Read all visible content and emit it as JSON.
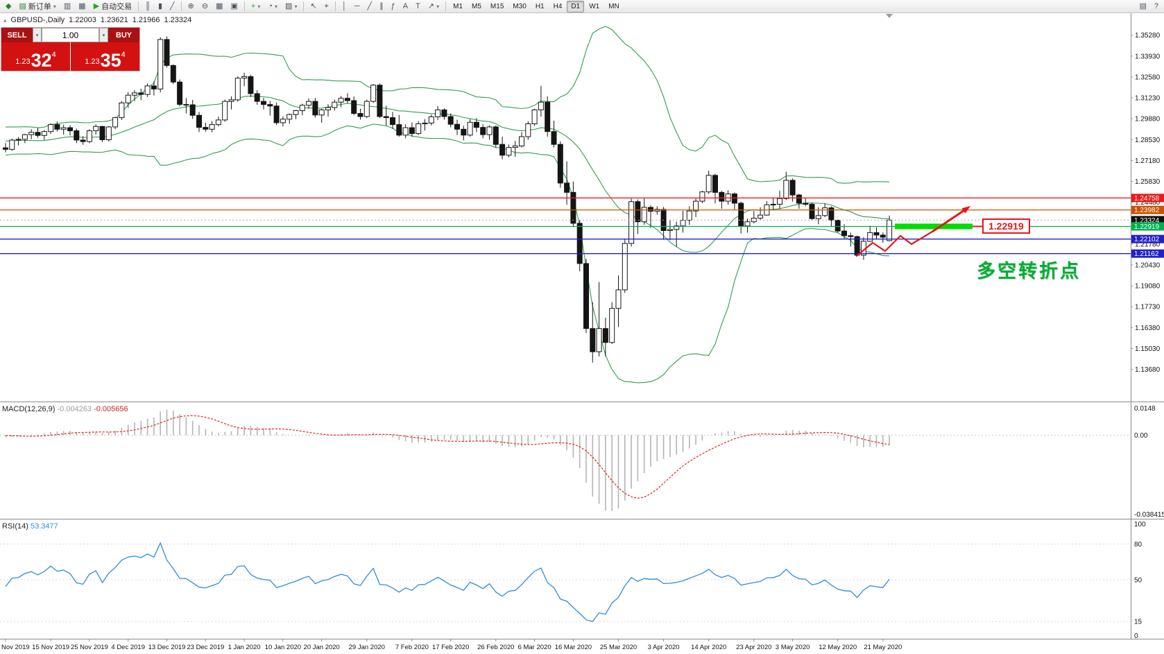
{
  "toolbar": {
    "items": [
      {
        "t": "btn",
        "name": "app-logo-icon",
        "glyph": "◆",
        "glyph_color": "#2e7d32"
      },
      {
        "t": "btn",
        "name": "new-order-button",
        "glyph": "▤",
        "glyph_color": "#2e7d32",
        "label": "新订单",
        "dropdown": true
      },
      {
        "t": "btn",
        "name": "chart-window-icon",
        "glyph": "▥"
      },
      {
        "t": "btn",
        "name": "data-window-icon",
        "glyph": "▦"
      },
      {
        "t": "btn",
        "name": "autotrade-button",
        "glyph": "▶",
        "glyph_color": "#1faa1f",
        "label": "自动交易"
      },
      {
        "t": "sep"
      },
      {
        "t": "btn",
        "name": "chart-bars-icon",
        "glyph": "║"
      },
      {
        "t": "btn",
        "name": "chart-candles-icon",
        "glyph": "▮"
      },
      {
        "t": "btn",
        "name": "chart-line-icon",
        "glyph": "╱"
      },
      {
        "t": "sep"
      },
      {
        "t": "btn",
        "name": "zoom-in-button",
        "glyph": "⊕"
      },
      {
        "t": "btn",
        "name": "zoom-out-button",
        "glyph": "⊖"
      },
      {
        "t": "btn",
        "name": "tile-windows-button",
        "glyph": "▦"
      },
      {
        "t": "btn",
        "name": "arrange-windows-button",
        "glyph": "▣"
      },
      {
        "t": "sep"
      },
      {
        "t": "btn",
        "name": "indicators-button",
        "glyph": "+",
        "glyph_color": "#1faa1f",
        "dropdown": true
      },
      {
        "t": "btn",
        "name": "periods-button",
        "glyph": "◔",
        "dropdown": true
      },
      {
        "t": "btn",
        "name": "templates-button",
        "glyph": "▨",
        "dropdown": true
      },
      {
        "t": "sep"
      },
      {
        "t": "btn",
        "name": "cursor-button",
        "glyph": "↖"
      },
      {
        "t": "btn",
        "name": "crosshair-button",
        "glyph": "⌖"
      },
      {
        "t": "sep"
      },
      {
        "t": "btn",
        "name": "vertical-line-button",
        "glyph": "│"
      },
      {
        "t": "btn",
        "name": "horizontal-line-button",
        "glyph": "─"
      },
      {
        "t": "btn",
        "name": "trendline-button",
        "glyph": "╱"
      },
      {
        "t": "btn",
        "name": "channel-button",
        "glyph": "∥"
      },
      {
        "t": "btn",
        "name": "fibonacci-button",
        "glyph": "ƒ"
      },
      {
        "t": "btn",
        "name": "text-button",
        "glyph": "A"
      },
      {
        "t": "btn",
        "name": "label-button",
        "glyph": "T"
      },
      {
        "t": "btn",
        "name": "arrows-button",
        "glyph": "↗",
        "dropdown": true
      },
      {
        "t": "sep"
      },
      {
        "t": "tf",
        "name": "tf-m1",
        "label": "M1"
      },
      {
        "t": "tf",
        "name": "tf-m5",
        "label": "M5"
      },
      {
        "t": "tf",
        "name": "tf-m15",
        "label": "M15"
      },
      {
        "t": "tf",
        "name": "tf-m30",
        "label": "M30"
      },
      {
        "t": "tf",
        "name": "tf-h1",
        "label": "H1"
      },
      {
        "t": "tf",
        "name": "tf-h4",
        "label": "H4"
      },
      {
        "t": "tf",
        "name": "tf-d1",
        "label": "D1",
        "active": true
      },
      {
        "t": "tf",
        "name": "tf-w1",
        "label": "W1"
      },
      {
        "t": "tf",
        "name": "tf-mn",
        "label": "MN"
      },
      {
        "t": "spacer"
      },
      {
        "t": "btn",
        "name": "window-icon",
        "glyph": "▤"
      },
      {
        "t": "btn",
        "name": "help-icon",
        "glyph": "?"
      }
    ]
  },
  "symbol_bar": {
    "symbol_period": "GBPUSD-,Daily",
    "open": "1.22003",
    "high": "1.23621",
    "low": "1.21966",
    "close": "1.23324"
  },
  "trade_widget": {
    "sell_label": "SELL",
    "buy_label": "BUY",
    "volume": "1.00",
    "bid": {
      "prefix": "1.23",
      "big": "32",
      "sup": "4"
    },
    "ask": {
      "prefix": "1.23",
      "big": "35",
      "sup": "4"
    }
  },
  "annotations": {
    "level_label": "1.22919",
    "cn_text": "多空转折点",
    "arrow_color": "#e81616",
    "highlight_bar_color": "#00dc00"
  },
  "levels": [
    {
      "price": 1.24758,
      "label": "1.24758",
      "color": "#f01818"
    },
    {
      "price": 1.23982,
      "label": "1.23982",
      "color": "#cc5200"
    },
    {
      "price": 1.23324,
      "label": "1.23324",
      "color": "#101010",
      "type": "bid"
    },
    {
      "price": 1.22919,
      "label": "1.22919",
      "color": "#00b050",
      "highlight": true
    },
    {
      "price": 1.22102,
      "label": "1.22102",
      "color": "#2020cc"
    },
    {
      "price": 1.21162,
      "label": "1.21162",
      "color": "#2020cc"
    }
  ],
  "chart_data": {
    "type": "candlestick",
    "symbol": "GBPUSD",
    "timeframe": "Daily",
    "price_axis": {
      "min": 1.1368,
      "step": 0.0135,
      "count": 17,
      "decimals": 5,
      "panel_min": 1.116,
      "panel_max": 1.367
    },
    "indicators": {
      "bollinger": {
        "period": 20,
        "deviation": 2,
        "color": "#2f9e4f"
      },
      "macd": {
        "label": "MACD(12,26,9)",
        "value_main": "-0.004263",
        "value_signal": "-0.005656",
        "scale_top": "0.0148",
        "scale_zero": "0.00",
        "scale_bottom": "-0.038415",
        "range_max": 0.0148,
        "range_min": -0.038415,
        "histogram_color": "#b4b4b4",
        "signal_color": "#e02020"
      },
      "rsi": {
        "label": "RSI(14)",
        "value": "53.3477",
        "levels": [
          80,
          50,
          15
        ],
        "scale": [
          "100",
          "80",
          "50",
          "15",
          "0"
        ],
        "color": "#2f8be0"
      }
    },
    "date_labels": [
      {
        "text": "Nov 2019",
        "i": 0
      },
      {
        "text": "15 Nov 2019",
        "i": 7
      },
      {
        "text": "25 Nov 2019",
        "i": 13
      },
      {
        "text": "4 Dec 2019",
        "i": 19
      },
      {
        "text": "13 Dec 2019",
        "i": 25
      },
      {
        "text": "23 Dec 2019",
        "i": 31
      },
      {
        "text": "1 Jan 2020",
        "i": 37
      },
      {
        "text": "10 Jan 2020",
        "i": 43
      },
      {
        "text": "20 Jan 2020",
        "i": 49
      },
      {
        "text": "29 Jan 2020",
        "i": 56
      },
      {
        "text": "7 Feb 2020",
        "i": 63
      },
      {
        "text": "17 Feb 2020",
        "i": 69
      },
      {
        "text": "26 Feb 2020",
        "i": 76
      },
      {
        "text": "6 Mar 2020",
        "i": 82
      },
      {
        "text": "16 Mar 2020",
        "i": 88
      },
      {
        "text": "25 Mar 2020",
        "i": 95
      },
      {
        "text": "3 Apr 2020",
        "i": 102
      },
      {
        "text": "14 Apr 2020",
        "i": 109
      },
      {
        "text": "23 Apr 2020",
        "i": 116
      },
      {
        "text": "3 May 2020",
        "i": 122
      },
      {
        "text": "12 May 2020",
        "i": 129
      },
      {
        "text": "21 May 2020",
        "i": 136
      }
    ],
    "candles": [
      [
        1.28,
        1.283,
        1.277,
        1.279
      ],
      [
        1.279,
        1.286,
        1.278,
        1.285
      ],
      [
        1.285,
        1.287,
        1.2815,
        1.2855
      ],
      [
        1.2855,
        1.289,
        1.283,
        1.2885
      ],
      [
        1.2885,
        1.292,
        1.2855,
        1.29
      ],
      [
        1.29,
        1.293,
        1.2865,
        1.288
      ],
      [
        1.288,
        1.2915,
        1.285,
        1.2905
      ],
      [
        1.2905,
        1.296,
        1.289,
        1.295
      ],
      [
        1.295,
        1.297,
        1.2905,
        1.292
      ],
      [
        1.292,
        1.295,
        1.2885,
        1.293
      ],
      [
        1.293,
        1.2945,
        1.288,
        1.291
      ],
      [
        1.291,
        1.2925,
        1.283,
        1.285
      ],
      [
        1.285,
        1.2875,
        1.282,
        1.284
      ],
      [
        1.284,
        1.292,
        1.283,
        1.291
      ],
      [
        1.291,
        1.2952,
        1.2885,
        1.2938
      ],
      [
        1.2938,
        1.2942,
        1.2838,
        1.2852
      ],
      [
        1.2852,
        1.294,
        1.284,
        1.2935
      ],
      [
        1.2935,
        1.3,
        1.292,
        1.2995
      ],
      [
        1.2995,
        1.3102,
        1.298,
        1.309
      ],
      [
        1.309,
        1.316,
        1.3058,
        1.314
      ],
      [
        1.314,
        1.3172,
        1.3102,
        1.3155
      ],
      [
        1.3155,
        1.3182,
        1.3108,
        1.3145
      ],
      [
        1.3145,
        1.3215,
        1.3128,
        1.32
      ],
      [
        1.32,
        1.323,
        1.3138,
        1.318
      ],
      [
        1.318,
        1.3515,
        1.3158,
        1.35
      ],
      [
        1.35,
        1.352,
        1.3318,
        1.3332
      ],
      [
        1.3332,
        1.334,
        1.3212,
        1.3225
      ],
      [
        1.3225,
        1.3242,
        1.3068,
        1.308
      ],
      [
        1.308,
        1.3122,
        1.3022,
        1.3078
      ],
      [
        1.3078,
        1.311,
        1.2988,
        1.301
      ],
      [
        1.301,
        1.3032,
        1.2902,
        1.2932
      ],
      [
        1.2932,
        1.2962,
        1.2904,
        1.292
      ],
      [
        1.292,
        1.2972,
        1.29,
        1.295
      ],
      [
        1.295,
        1.3002,
        1.2938,
        1.298
      ],
      [
        1.298,
        1.3112,
        1.2968,
        1.31
      ],
      [
        1.31,
        1.3132,
        1.3048,
        1.311
      ],
      [
        1.311,
        1.3262,
        1.3098,
        1.325
      ],
      [
        1.325,
        1.3285,
        1.3198,
        1.326
      ],
      [
        1.326,
        1.3272,
        1.3128,
        1.315
      ],
      [
        1.315,
        1.3172,
        1.3078,
        1.31
      ],
      [
        1.31,
        1.3122,
        1.3048,
        1.308
      ],
      [
        1.308,
        1.3102,
        1.3008,
        1.307
      ],
      [
        1.307,
        1.3092,
        1.2948,
        1.2962
      ],
      [
        1.2962,
        1.3002,
        1.2938,
        1.2985
      ],
      [
        1.2985,
        1.3022,
        1.2955,
        1.3015
      ],
      [
        1.3015,
        1.3045,
        1.2985,
        1.304
      ],
      [
        1.304,
        1.3085,
        1.301,
        1.3075
      ],
      [
        1.3075,
        1.312,
        1.3052,
        1.31
      ],
      [
        1.31,
        1.3122,
        1.2995,
        1.3012
      ],
      [
        1.3012,
        1.3052,
        1.2962,
        1.3045
      ],
      [
        1.3045,
        1.3082,
        1.3002,
        1.306
      ],
      [
        1.306,
        1.3112,
        1.304,
        1.3095
      ],
      [
        1.3095,
        1.3135,
        1.3062,
        1.312
      ],
      [
        1.312,
        1.3152,
        1.3088,
        1.3105
      ],
      [
        1.3105,
        1.3132,
        1.3012,
        1.3022
      ],
      [
        1.3022,
        1.3052,
        1.2982,
        1.3002
      ],
      [
        1.3002,
        1.3112,
        1.2992,
        1.31
      ],
      [
        1.31,
        1.3212,
        1.309,
        1.3205
      ],
      [
        1.3205,
        1.3215,
        1.2992,
        1.3002
      ],
      [
        1.3002,
        1.3072,
        1.2942,
        1.2995
      ],
      [
        1.2995,
        1.3032,
        1.2922,
        1.295
      ],
      [
        1.295,
        1.3012,
        1.2872,
        1.2882
      ],
      [
        1.2882,
        1.2952,
        1.2862,
        1.293
      ],
      [
        1.293,
        1.2965,
        1.2872,
        1.2892
      ],
      [
        1.2892,
        1.2972,
        1.2882,
        1.2955
      ],
      [
        1.2955,
        1.2985,
        1.2912,
        1.296
      ],
      [
        1.296,
        1.3015,
        1.2945,
        1.3
      ],
      [
        1.3,
        1.307,
        1.298,
        1.3045
      ],
      [
        1.3045,
        1.3055,
        1.2982,
        1.3002
      ],
      [
        1.3002,
        1.3022,
        1.2932,
        1.2952
      ],
      [
        1.2952,
        1.2982,
        1.2882,
        1.292
      ],
      [
        1.292,
        1.2942,
        1.2848,
        1.2882
      ],
      [
        1.2882,
        1.2985,
        1.2872,
        1.2965
      ],
      [
        1.2965,
        1.2992,
        1.2902,
        1.2932
      ],
      [
        1.2932,
        1.2952,
        1.2862,
        1.2885
      ],
      [
        1.2885,
        1.2945,
        1.2852,
        1.2935
      ],
      [
        1.2935,
        1.2945,
        1.2802,
        1.2822
      ],
      [
        1.2822,
        1.2872,
        1.2726,
        1.2752
      ],
      [
        1.2752,
        1.2822,
        1.2738,
        1.2802
      ],
      [
        1.2802,
        1.2845,
        1.2742,
        1.2812
      ],
      [
        1.2812,
        1.2902,
        1.2802,
        1.2872
      ],
      [
        1.2872,
        1.2972,
        1.2852,
        1.2955
      ],
      [
        1.2955,
        1.3052,
        1.2942,
        1.3045
      ],
      [
        1.3045,
        1.32,
        1.3002,
        1.3095
      ],
      [
        1.3095,
        1.3132,
        1.2872,
        1.2905
      ],
      [
        1.2905,
        1.2975,
        1.2802,
        1.2822
      ],
      [
        1.2822,
        1.2842,
        1.2542,
        1.2572
      ],
      [
        1.2572,
        1.2712,
        1.2432,
        1.2512
      ],
      [
        1.2512,
        1.2582,
        1.2288,
        1.2312
      ],
      [
        1.2312,
        1.2332,
        1.2002,
        1.2052
      ],
      [
        1.2052,
        1.2082,
        1.1602,
        1.1632
      ],
      [
        1.1632,
        1.1802,
        1.1412,
        1.1482
      ],
      [
        1.1482,
        1.1932,
        1.1452,
        1.1632
      ],
      [
        1.1632,
        1.1702,
        1.1452,
        1.1542
      ],
      [
        1.1542,
        1.1802,
        1.1532,
        1.1762
      ],
      [
        1.1762,
        1.1975,
        1.1642,
        1.1882
      ],
      [
        1.1882,
        1.2212,
        1.1862,
        1.2182
      ],
      [
        1.2182,
        1.2472,
        1.2162,
        1.2452
      ],
      [
        1.2452,
        1.2466,
        1.2242,
        1.2322
      ],
      [
        1.2322,
        1.2472,
        1.2302,
        1.2415
      ],
      [
        1.2415,
        1.2428,
        1.2282,
        1.239
      ],
      [
        1.239,
        1.2422,
        1.2368,
        1.2402
      ],
      [
        1.2402,
        1.2418,
        1.2206,
        1.2265
      ],
      [
        1.2265,
        1.2332,
        1.2202,
        1.2272
      ],
      [
        1.2272,
        1.2322,
        1.2162,
        1.2295
      ],
      [
        1.2295,
        1.2392,
        1.2252,
        1.2332
      ],
      [
        1.2332,
        1.2422,
        1.2302,
        1.2392
      ],
      [
        1.2392,
        1.2472,
        1.2352,
        1.2455
      ],
      [
        1.2455,
        1.2522,
        1.2442,
        1.2515
      ],
      [
        1.2515,
        1.2652,
        1.2502,
        1.2622
      ],
      [
        1.2622,
        1.2632,
        1.2442,
        1.2512
      ],
      [
        1.2512,
        1.2522,
        1.2406,
        1.2455
      ],
      [
        1.2455,
        1.2525,
        1.2432,
        1.2502
      ],
      [
        1.2502,
        1.2512,
        1.2402,
        1.2442
      ],
      [
        1.2442,
        1.2452,
        1.2246,
        1.2295
      ],
      [
        1.2295,
        1.2342,
        1.2252,
        1.2322
      ],
      [
        1.2322,
        1.2392,
        1.2312,
        1.2345
      ],
      [
        1.2345,
        1.2415,
        1.2332,
        1.2365
      ],
      [
        1.2365,
        1.2455,
        1.2362,
        1.2432
      ],
      [
        1.2432,
        1.2475,
        1.2402,
        1.2435
      ],
      [
        1.2435,
        1.2522,
        1.2406,
        1.2472
      ],
      [
        1.2472,
        1.2645,
        1.2462,
        1.259
      ],
      [
        1.259,
        1.2602,
        1.2452,
        1.2495
      ],
      [
        1.2495,
        1.2502,
        1.2406,
        1.2442
      ],
      [
        1.2442,
        1.2472,
        1.2422,
        1.2435
      ],
      [
        1.2435,
        1.2445,
        1.2332,
        1.2342
      ],
      [
        1.2342,
        1.2415,
        1.2306,
        1.2362
      ],
      [
        1.2362,
        1.2442,
        1.2352,
        1.2412
      ],
      [
        1.2412,
        1.2422,
        1.2292,
        1.2332
      ],
      [
        1.2332,
        1.2336,
        1.2252,
        1.2262
      ],
      [
        1.2262,
        1.2306,
        1.2212,
        1.2232
      ],
      [
        1.2232,
        1.2252,
        1.2162,
        1.2226
      ],
      [
        1.2226,
        1.2232,
        1.2102,
        1.2106
      ],
      [
        1.2106,
        1.2222,
        1.2076,
        1.2196
      ],
      [
        1.2196,
        1.2296,
        1.2192,
        1.2252
      ],
      [
        1.2252,
        1.2286,
        1.2206,
        1.2236
      ],
      [
        1.2236,
        1.2252,
        1.2186,
        1.2222
      ],
      [
        1.22003,
        1.23621,
        1.21966,
        1.23324
      ]
    ]
  }
}
